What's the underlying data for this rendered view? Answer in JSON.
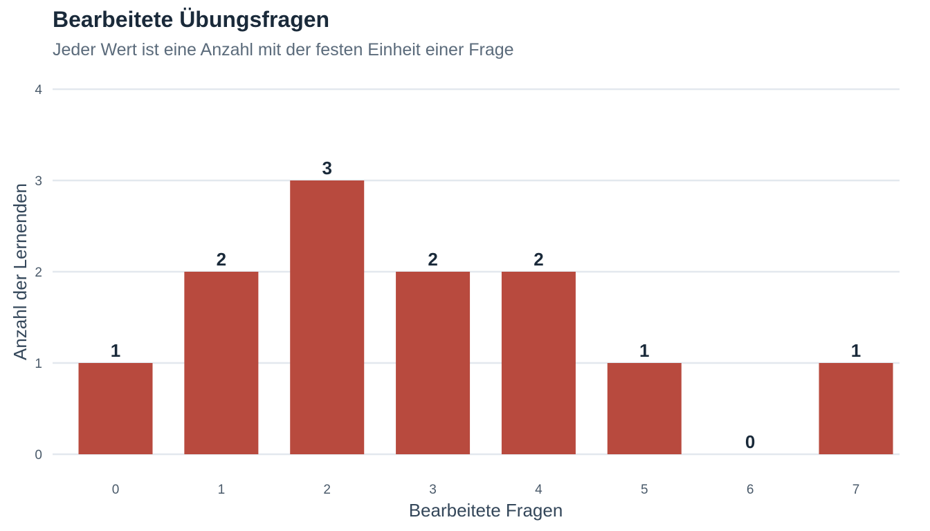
{
  "chart_data": {
    "type": "bar",
    "title": "Bearbeitete Übungsfragen",
    "subtitle": "Jeder Wert ist eine Anzahl mit der festen Einheit einer Frage",
    "xlabel": "Bearbeitete Fragen",
    "ylabel": "Anzahl der Lernenden",
    "categories": [
      "0",
      "1",
      "2",
      "3",
      "4",
      "5",
      "6",
      "7"
    ],
    "values": [
      1,
      2,
      3,
      2,
      2,
      1,
      0,
      1
    ],
    "ylim": [
      0,
      4
    ],
    "yticks": [
      0,
      1,
      2,
      3,
      4
    ],
    "grid": true,
    "bar_color": "#b84a3e",
    "grid_color": "#e3e8ee"
  }
}
